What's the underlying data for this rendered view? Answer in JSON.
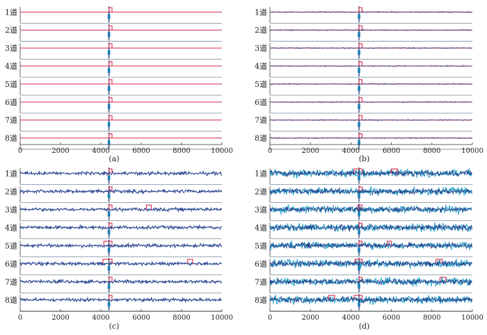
{
  "chart_data": [
    {
      "type": "line",
      "panel_label": "(a)",
      "noise_level": "none",
      "xlim": [
        0,
        10000
      ],
      "x_ticks": [
        "0",
        "2000",
        "4000",
        "6000",
        "8000",
        "10000"
      ],
      "channels": [
        "1道",
        "2道",
        "3道",
        "4道",
        "5道",
        "6道",
        "7道",
        "8道"
      ],
      "signal_position": 4400,
      "detection_windows": [
        {
          "channel": 1,
          "start": 4400,
          "end": 4550
        },
        {
          "channel": 2,
          "start": 4400,
          "end": 4550
        },
        {
          "channel": 3,
          "start": 4400,
          "end": 4550
        },
        {
          "channel": 4,
          "start": 4400,
          "end": 4550
        },
        {
          "channel": 5,
          "start": 4400,
          "end": 4550
        },
        {
          "channel": 6,
          "start": 4400,
          "end": 4550
        },
        {
          "channel": 7,
          "start": 4400,
          "end": 4550
        },
        {
          "channel": 8,
          "start": 4400,
          "end": 4550
        }
      ]
    },
    {
      "type": "line",
      "panel_label": "(b)",
      "noise_level": "low",
      "xlim": [
        0,
        10000
      ],
      "x_ticks": [
        "0",
        "2000",
        "4000",
        "6000",
        "8000",
        "10000"
      ],
      "channels": [
        "1道",
        "2道",
        "3道",
        "4道",
        "5道",
        "6道",
        "7道",
        "8道"
      ],
      "signal_position": 4400,
      "detection_windows": [
        {
          "channel": 1,
          "start": 4400,
          "end": 4550
        },
        {
          "channel": 2,
          "start": 4400,
          "end": 4550
        },
        {
          "channel": 3,
          "start": 4400,
          "end": 4550
        },
        {
          "channel": 4,
          "start": 4400,
          "end": 4550
        },
        {
          "channel": 5,
          "start": 4400,
          "end": 4550
        },
        {
          "channel": 6,
          "start": 4400,
          "end": 4550
        },
        {
          "channel": 7,
          "start": 4400,
          "end": 4550
        },
        {
          "channel": 8,
          "start": 4400,
          "end": 4550
        }
      ]
    },
    {
      "type": "line",
      "panel_label": "(c)",
      "noise_level": "medium",
      "xlim": [
        0,
        10000
      ],
      "x_ticks": [
        "0",
        "2000",
        "4000",
        "6000",
        "8000",
        "10000"
      ],
      "channels": [
        "1道",
        "2道",
        "3道",
        "4道",
        "5道",
        "6道",
        "7道",
        "8道"
      ],
      "signal_position": 4400,
      "detection_windows": [
        {
          "channel": 1,
          "start": 4400,
          "end": 4550
        },
        {
          "channel": 2,
          "start": 4400,
          "end": 4550
        },
        {
          "channel": 3,
          "start": 4400,
          "end": 4550
        },
        {
          "channel": 3,
          "start": 6250,
          "end": 6500
        },
        {
          "channel": 4,
          "start": 4400,
          "end": 4550
        },
        {
          "channel": 5,
          "start": 4150,
          "end": 4550
        },
        {
          "channel": 6,
          "start": 4100,
          "end": 4550
        },
        {
          "channel": 6,
          "start": 8300,
          "end": 8550
        },
        {
          "channel": 7,
          "start": 4400,
          "end": 4550
        },
        {
          "channel": 8,
          "start": 4400,
          "end": 4550
        }
      ]
    },
    {
      "type": "line",
      "panel_label": "(d)",
      "noise_level": "high",
      "xlim": [
        0,
        10000
      ],
      "x_ticks": [
        "0",
        "2000",
        "4000",
        "6000",
        "8000",
        "10000"
      ],
      "channels": [
        "1道",
        "2道",
        "3道",
        "4道",
        "5道",
        "6道",
        "7道",
        "8道"
      ],
      "signal_position": 4400,
      "detection_windows": [
        {
          "channel": 1,
          "start": 4150,
          "end": 4550
        },
        {
          "channel": 1,
          "start": 6000,
          "end": 6300
        },
        {
          "channel": 2,
          "start": 4400,
          "end": 4550
        },
        {
          "channel": 3,
          "start": 4350,
          "end": 4550
        },
        {
          "channel": 4,
          "start": 4400,
          "end": 4550
        },
        {
          "channel": 5,
          "start": 4400,
          "end": 4550
        },
        {
          "channel": 5,
          "start": 5800,
          "end": 6000
        },
        {
          "channel": 6,
          "start": 4200,
          "end": 4550
        },
        {
          "channel": 6,
          "start": 8200,
          "end": 8500
        },
        {
          "channel": 7,
          "start": 4400,
          "end": 4550
        },
        {
          "channel": 7,
          "start": 8400,
          "end": 8700
        },
        {
          "channel": 8,
          "start": 2900,
          "end": 3200
        },
        {
          "channel": 8,
          "start": 4150,
          "end": 4550
        }
      ]
    }
  ]
}
